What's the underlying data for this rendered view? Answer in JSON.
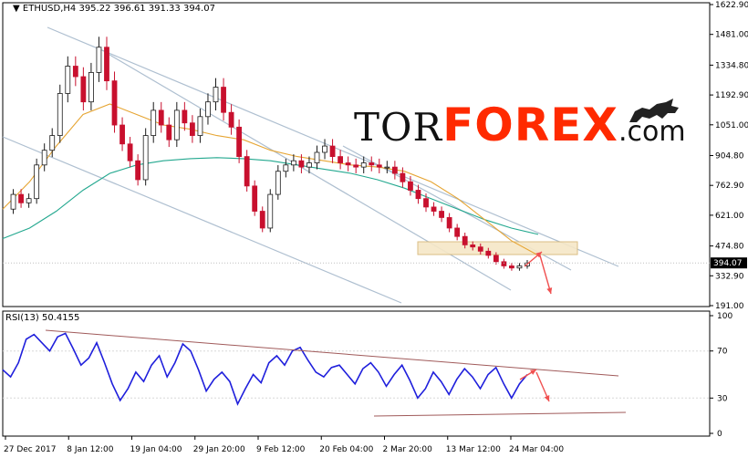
{
  "header": {
    "symbol": "ETHUSD,H4",
    "ohlc": "395.22 396.61 391.33 394.07",
    "marker": "▼"
  },
  "logo": {
    "part1": "TOR",
    "part2": "FOREX",
    "part3": ".com",
    "icon": "bull-bear-icon"
  },
  "colors": {
    "bull": "#1a1a1a",
    "bear": "#c8102e",
    "ma_fast": "#e6a533",
    "ma_slow": "#23a88f",
    "channel": "#aebfd0",
    "rsi": "#1f1fdc",
    "rsi_trend": "#a05a5a",
    "arrow": "#f05050",
    "zone": "#f6e7c7",
    "grid": "#d8d8d8",
    "brand": "#ff2a00"
  },
  "chart_data": [
    {
      "type": "line",
      "title": "ETHUSD,H4",
      "ylim": [
        191.0,
        1622.9
      ],
      "yticks": [
        1622.9,
        1481.0,
        1334.8,
        1192.9,
        1051.0,
        904.8,
        762.9,
        621.0,
        474.8,
        332.9,
        191.0
      ],
      "ytick_labels": [
        "1622.90",
        "1481.00",
        "1334.80",
        "1192.90",
        "1051.00",
        "904.80",
        "762.90",
        "621.00",
        "474.80",
        "332.90",
        "191.00"
      ],
      "x_labels": [
        "27 Dec 2017",
        "8 Jan 12:00",
        "19 Jan 04:00",
        "29 Jan 20:00",
        "9 Feb 12:00",
        "20 Feb 04:00",
        "2 Mar 20:00",
        "13 Mar 12:00",
        "24 Mar 04:00"
      ],
      "current_price": "394.07",
      "series": [
        {
          "values": [
            650,
            720,
            680,
            700,
            860,
            930,
            1000,
            1200,
            1330,
            1280,
            1160,
            1300,
            1420,
            1260,
            1050,
            960,
            880,
            790,
            1000,
            1120,
            1050,
            980,
            1120,
            1060,
            1000,
            1090,
            1160,
            1230,
            1110,
            1040,
            900,
            760,
            640,
            560,
            720,
            830,
            860,
            880,
            850,
            870,
            920,
            950,
            900,
            870,
            860,
            850,
            870,
            860,
            850,
            850,
            820,
            780,
            740,
            700,
            660,
            640,
            610,
            560,
            520,
            480,
            470,
            450,
            430,
            400,
            380,
            370,
            380,
            394
          ]
        },
        {
          "values": [
            650,
            780,
            950,
            1100,
            1150,
            1100,
            1050,
            1030,
            1000,
            980,
            930,
            900,
            880,
            860,
            850,
            830,
            780,
            700,
            600,
            500,
            430
          ]
        },
        {
          "values": [
            510,
            560,
            640,
            740,
            820,
            860,
            880,
            890,
            895,
            890,
            880,
            860,
            840,
            820,
            790,
            750,
            700,
            650,
            600,
            560,
            530
          ]
        }
      ]
    },
    {
      "type": "line",
      "title": "RSI(13) 50.4155",
      "ylim": [
        0,
        100
      ],
      "yticks": [
        100,
        70,
        30,
        0
      ],
      "ytick_labels": [
        "100",
        "70",
        "30",
        "0"
      ],
      "series": [
        {
          "values": [
            54,
            48,
            60,
            80,
            84,
            77,
            70,
            82,
            85,
            72,
            58,
            64,
            77,
            60,
            42,
            28,
            38,
            52,
            44,
            58,
            66,
            48,
            60,
            76,
            70,
            54,
            36,
            46,
            52,
            44,
            25,
            38,
            50,
            43,
            60,
            66,
            58,
            70,
            73,
            62,
            52,
            48,
            56,
            58,
            50,
            42,
            55,
            60,
            52,
            40,
            50,
            58,
            45,
            30,
            38,
            52,
            44,
            33,
            46,
            55,
            48,
            38,
            50,
            56,
            42,
            30,
            42,
            50
          ]
        }
      ]
    }
  ]
}
